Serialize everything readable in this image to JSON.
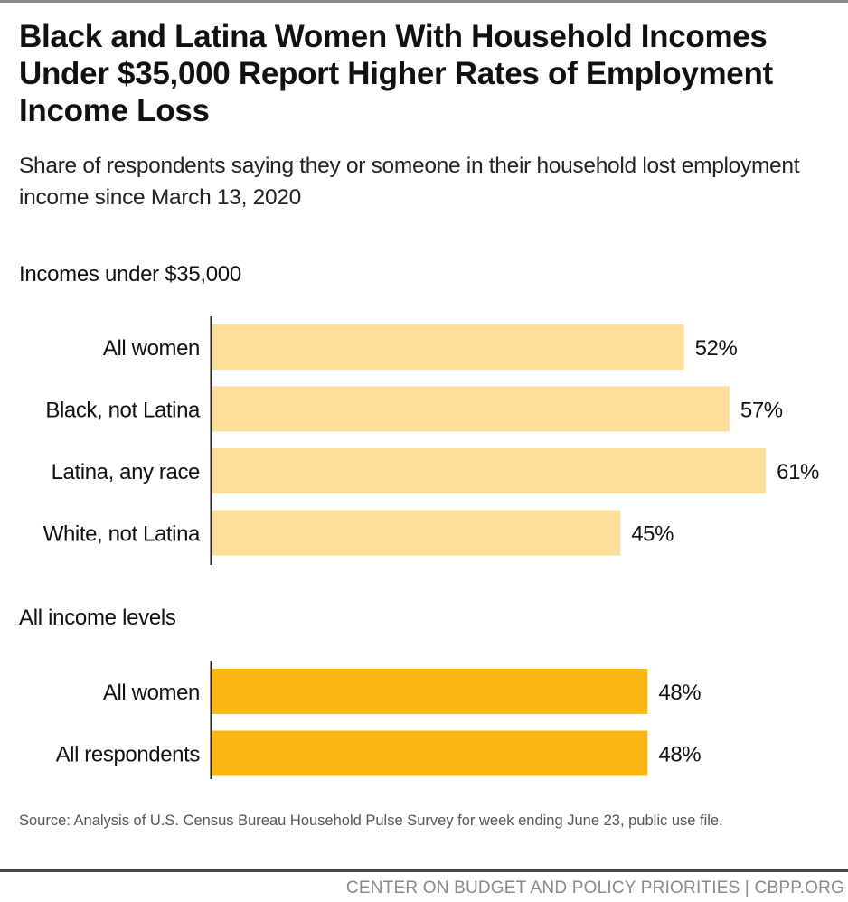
{
  "header": {
    "title": "Black and Latina Women With Household Incomes Under $35,000 Report Higher Rates of Employment Income Loss",
    "subtitle": "Share of respondents saying they or someone in their household lost employment income since March 13, 2020"
  },
  "colors": {
    "light_bar": "#FFDD9A",
    "dark_bar": "#FDB817",
    "axis": "#222222"
  },
  "chart_data": {
    "type": "bar",
    "orientation": "horizontal",
    "title": "Black and Latina Women With Household Incomes Under $35,000 Report Higher Rates of Employment Income Loss",
    "subtitle": "Share of respondents saying they or someone in their household lost employment income since March 13, 2020",
    "xlabel": "",
    "ylabel": "",
    "xlim": [
      0,
      62
    ],
    "grid": false,
    "legend": "none",
    "unit": "%",
    "groups": [
      {
        "name": "Incomes under $35,000",
        "color": "#FFDD9A",
        "categories": [
          "All women",
          "Black, not Latina",
          "Latina, any race",
          "White, not Latina"
        ],
        "values": [
          52,
          57,
          61,
          45
        ],
        "labels": [
          "52%",
          "57%",
          "61%",
          "45%"
        ]
      },
      {
        "name": "All income levels",
        "color": "#FDB817",
        "categories": [
          "All women",
          "All respondents"
        ],
        "values": [
          48,
          48
        ],
        "labels": [
          "48%",
          "48%"
        ]
      }
    ]
  },
  "footer": {
    "source": "Source: Analysis of U.S. Census Bureau Household Pulse Survey for week ending June 23, public use file.",
    "org": "CENTER ON BUDGET AND POLICY PRIORITIES | CBPP.ORG"
  }
}
